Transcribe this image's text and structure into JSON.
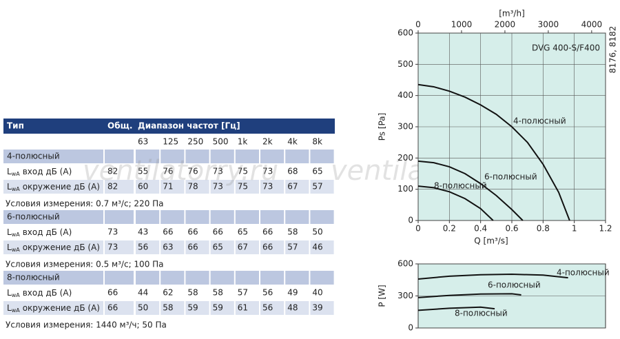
{
  "table": {
    "header": [
      "Тип",
      "Общ.",
      "Диапазон частот [Гц]"
    ],
    "frequencies": [
      "63",
      "125",
      "250",
      "500",
      "1k",
      "2k",
      "4k",
      "8k"
    ],
    "groups": [
      {
        "name": "4-полюсный",
        "rows": [
          {
            "symbol": "L",
            "subscript": "wA",
            "label": "вход дБ (А)",
            "total": 82,
            "values": [
              55,
              76,
              76,
              73,
              75,
              73,
              68,
              65
            ]
          },
          {
            "symbol": "L",
            "subscript": "wA",
            "label": "окружение дБ (А)",
            "total": 82,
            "values": [
              60,
              71,
              78,
              73,
              75,
              73,
              67,
              57
            ]
          }
        ],
        "condition": "Условия измерения: 0.7 м³/с; 220 Па"
      },
      {
        "name": "6-полюсный",
        "rows": [
          {
            "symbol": "L",
            "subscript": "wA",
            "label": "вход дБ (А)",
            "total": 73,
            "values": [
              43,
              66,
              66,
              66,
              65,
              66,
              58,
              50
            ]
          },
          {
            "symbol": "L",
            "subscript": "wA",
            "label": "окружение дБ (А)",
            "total": 73,
            "values": [
              56,
              63,
              66,
              65,
              67,
              66,
              57,
              46
            ]
          }
        ],
        "condition": "Условия измерения: 0.5 м³/с; 100 Па"
      },
      {
        "name": "8-полюсный",
        "rows": [
          {
            "symbol": "L",
            "subscript": "wA",
            "label": "вход дБ (А)",
            "total": 66,
            "values": [
              44,
              62,
              58,
              58,
              57,
              56,
              49,
              40
            ]
          },
          {
            "symbol": "L",
            "subscript": "wA",
            "label": "окружение дБ (А)",
            "total": 66,
            "values": [
              50,
              58,
              59,
              59,
              61,
              56,
              48,
              39
            ]
          }
        ],
        "condition": "Условия измерения: 1440 м³/ч; 50 Па"
      }
    ]
  },
  "watermark": [
    "ventilatorry.ru",
    "ventilatorry.ru"
  ],
  "side_code": "8176, 8182",
  "chart_data": [
    {
      "type": "line",
      "title": "DVG 400-S/F400",
      "x_label": "Q [m³/s]",
      "y_label": "Ps [Pa]",
      "x2_label": "[m³/h]",
      "xlim": [
        0,
        1.2
      ],
      "xticks": [
        0,
        0.2,
        0.4,
        0.6,
        0.8,
        1,
        1.2
      ],
      "x2lim": [
        0,
        4320
      ],
      "x2ticks": [
        0,
        1000,
        2000,
        3000,
        4000
      ],
      "ylim": [
        0,
        600
      ],
      "yticks": [
        0,
        100,
        200,
        300,
        400,
        500,
        600
      ],
      "grid": true,
      "background": "#d6eeea",
      "series": [
        {
          "name": "4-полюсный",
          "color": "#111111",
          "x": [
            0,
            0.1,
            0.2,
            0.3,
            0.4,
            0.5,
            0.6,
            0.7,
            0.8,
            0.9,
            0.97
          ],
          "values": [
            435,
            428,
            414,
            395,
            370,
            340,
            300,
            250,
            180,
            90,
            0
          ]
        },
        {
          "name": "6-полюсный",
          "color": "#111111",
          "x": [
            0,
            0.1,
            0.2,
            0.3,
            0.4,
            0.5,
            0.6,
            0.67
          ],
          "values": [
            190,
            185,
            172,
            150,
            118,
            80,
            35,
            0
          ]
        },
        {
          "name": "8-полюсный",
          "color": "#111111",
          "x": [
            0,
            0.1,
            0.2,
            0.3,
            0.4,
            0.48
          ],
          "values": [
            110,
            105,
            92,
            70,
            38,
            0
          ]
        }
      ]
    },
    {
      "type": "line",
      "y_label": "P [W]",
      "xlim": [
        0,
        1.2
      ],
      "ylim": [
        0,
        600
      ],
      "yticks": [
        0,
        300,
        600
      ],
      "grid": true,
      "background": "#d6eeea",
      "series": [
        {
          "name": "4-полюсный",
          "color": "#111111",
          "x": [
            0,
            0.2,
            0.4,
            0.6,
            0.8,
            0.96
          ],
          "values": [
            458,
            485,
            498,
            503,
            495,
            470
          ]
        },
        {
          "name": "6-полюсный",
          "color": "#111111",
          "x": [
            0,
            0.2,
            0.4,
            0.6,
            0.66
          ],
          "values": [
            285,
            305,
            318,
            320,
            310
          ]
        },
        {
          "name": "8-полюсный",
          "color": "#111111",
          "x": [
            0,
            0.2,
            0.4,
            0.49
          ],
          "values": [
            165,
            185,
            195,
            180
          ]
        }
      ]
    }
  ]
}
